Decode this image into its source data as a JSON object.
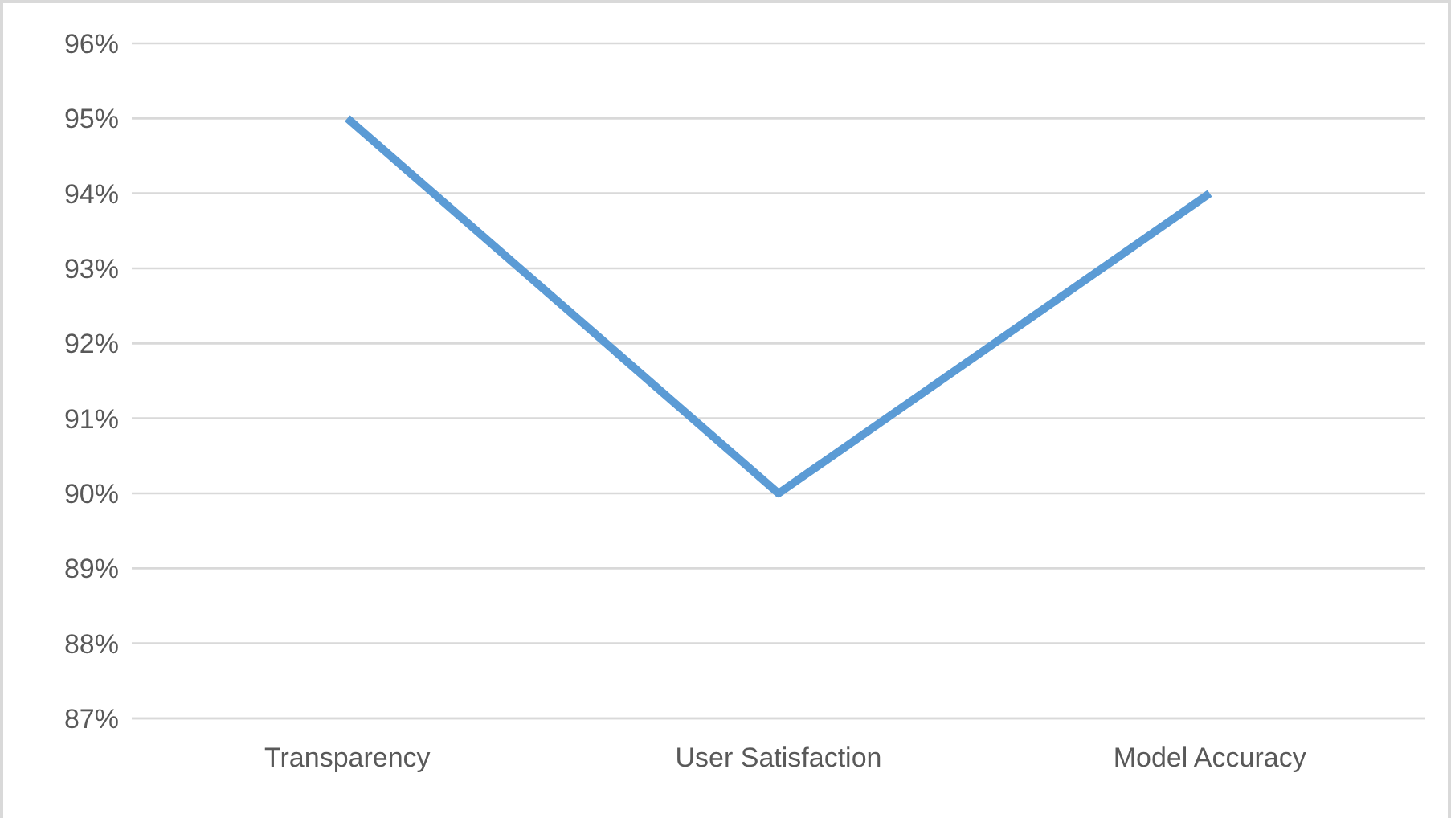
{
  "chart_data": {
    "type": "line",
    "categories": [
      "Transparency",
      "User Satisfaction",
      "Model Accuracy"
    ],
    "series": [
      {
        "color": "#5b9bd5",
        "values": [
          95,
          90,
          94
        ]
      }
    ],
    "ylim": [
      87,
      96
    ],
    "yticks": [
      {
        "value": 87,
        "label": "87%"
      },
      {
        "value": 88,
        "label": "88%"
      },
      {
        "value": 89,
        "label": "89%"
      },
      {
        "value": 90,
        "label": "90%"
      },
      {
        "value": 91,
        "label": "91%"
      },
      {
        "value": 92,
        "label": "92%"
      },
      {
        "value": 93,
        "label": "93%"
      },
      {
        "value": 94,
        "label": "94%"
      },
      {
        "value": 95,
        "label": "95%"
      },
      {
        "value": 96,
        "label": "96%"
      }
    ],
    "grid": "y",
    "legend": false,
    "marker": "none",
    "line_style": "solid"
  }
}
